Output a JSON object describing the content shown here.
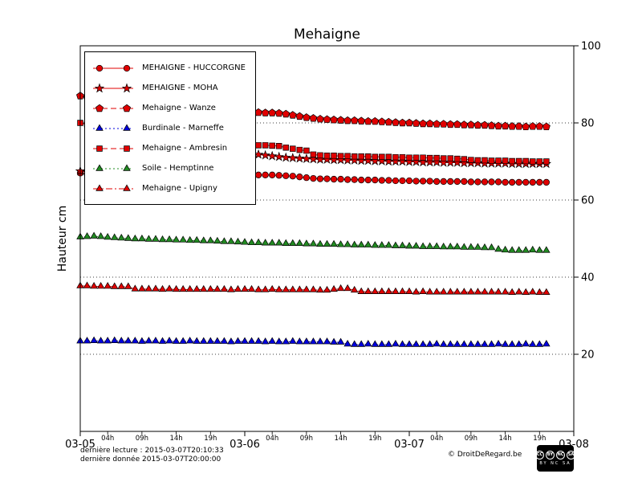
{
  "title": "Mehaigne",
  "ylabel": "Hauteur cm",
  "footer": {
    "last_read": "dernière lecture : 2015-03-07T20:10:33",
    "last_data": "dernière donnée  2015-03-07T20:00:00",
    "copyright": "© DroitDeRegard.be"
  },
  "license": {
    "cc": "cc",
    "by": "by",
    "nc": "nc",
    "sa": "sa",
    "caption": "BY NC SA"
  },
  "chart_data": {
    "type": "line",
    "title": "Mehaigne",
    "xlabel": "",
    "ylabel": "Hauteur cm",
    "ylim": [
      0,
      100
    ],
    "xlim": [
      0,
      72
    ],
    "x_unit": "hours since 2015-03-05 00:00",
    "grid": true,
    "grid_values": [
      20,
      40,
      60,
      80
    ],
    "yticks": [
      20,
      40,
      60,
      80,
      100
    ],
    "x_major": [
      {
        "t": 0,
        "label": "03-05"
      },
      {
        "t": 24,
        "label": "03-06"
      },
      {
        "t": 48,
        "label": "03-07"
      },
      {
        "t": 72,
        "label": "03-08"
      }
    ],
    "x_minor_hours": [
      4,
      9,
      14,
      19
    ],
    "x_minor_labels": [
      "04h",
      "09h",
      "14h",
      "19h"
    ],
    "legend_position": "upper left",
    "series": [
      {
        "name": "MEHAIGNE - HUCCORGNE",
        "color": "#e00000",
        "marker": "circle",
        "linestyle": "solid",
        "values": [
          67.0,
          66.8,
          null,
          null,
          null,
          null,
          null,
          null,
          null,
          null,
          null,
          null,
          null,
          null,
          null,
          null,
          null,
          null,
          null,
          null,
          null,
          null,
          null,
          null,
          66.3,
          66.4,
          66.5,
          66.5,
          66.5,
          66.4,
          66.3,
          66.2,
          66.0,
          65.8,
          65.6,
          65.5,
          65.5,
          65.4,
          65.4,
          65.3,
          65.3,
          65.2,
          65.2,
          65.2,
          65.1,
          65.1,
          65.0,
          65.0,
          65.0,
          64.9,
          64.9,
          64.9,
          64.8,
          64.8,
          64.8,
          64.8,
          64.8,
          64.7,
          64.7,
          64.7,
          64.7,
          64.7,
          64.6,
          64.6,
          64.6,
          64.6,
          64.6,
          64.6,
          64.6
        ]
      },
      {
        "name": "MEHAIGNE - MOHA",
        "color": "#e00000",
        "marker": "star",
        "linestyle": "solid",
        "values": [
          67.5,
          67.3,
          null,
          null,
          null,
          null,
          null,
          null,
          null,
          null,
          null,
          null,
          null,
          null,
          null,
          null,
          null,
          null,
          null,
          null,
          null,
          null,
          null,
          null,
          72.0,
          72.0,
          71.8,
          71.6,
          71.4,
          71.2,
          71.0,
          70.9,
          70.8,
          70.7,
          70.6,
          70.5,
          70.5,
          70.4,
          70.4,
          70.3,
          70.3,
          70.2,
          70.2,
          70.1,
          70.1,
          70.0,
          70.0,
          70.0,
          69.9,
          69.9,
          69.8,
          69.8,
          69.8,
          69.7,
          69.7,
          69.7,
          69.6,
          69.6,
          69.6,
          69.5,
          69.5,
          69.5,
          69.5,
          69.4,
          69.4,
          69.4,
          69.4,
          69.4,
          69.4
        ]
      },
      {
        "name": "Mehaigne - Wanze",
        "color": "#e00000",
        "marker": "pentagon",
        "linestyle": "dashed",
        "values": [
          87.0,
          86.6,
          null,
          null,
          null,
          null,
          null,
          null,
          null,
          null,
          null,
          null,
          null,
          null,
          null,
          null,
          null,
          null,
          null,
          null,
          null,
          null,
          null,
          null,
          82.7,
          82.7,
          82.7,
          82.6,
          82.6,
          82.5,
          82.3,
          82.0,
          81.7,
          81.4,
          81.2,
          81.0,
          80.9,
          80.8,
          80.7,
          80.6,
          80.6,
          80.5,
          80.4,
          80.4,
          80.3,
          80.2,
          80.1,
          80.0,
          80.0,
          79.9,
          79.8,
          79.8,
          79.7,
          79.7,
          79.6,
          79.6,
          79.5,
          79.5,
          79.4,
          79.4,
          79.3,
          79.2,
          79.2,
          79.1,
          79.1,
          79.0,
          79.1,
          79.1,
          79.0
        ]
      },
      {
        "name": "Burdinale - Marneffe",
        "color": "#0000dd",
        "marker": "triangle",
        "linestyle": "dotted",
        "values": [
          23.4,
          23.4,
          23.5,
          23.4,
          23.4,
          23.5,
          23.4,
          23.4,
          23.4,
          23.3,
          23.4,
          23.4,
          23.3,
          23.4,
          23.3,
          23.3,
          23.4,
          23.3,
          23.3,
          23.3,
          23.3,
          23.3,
          23.2,
          23.3,
          23.3,
          23.3,
          23.3,
          23.2,
          23.3,
          23.2,
          23.2,
          23.3,
          23.2,
          23.2,
          23.2,
          23.2,
          23.2,
          23.1,
          23.1,
          22.6,
          22.5,
          22.5,
          22.6,
          22.5,
          22.5,
          22.5,
          22.6,
          22.5,
          22.5,
          22.5,
          22.5,
          22.5,
          22.6,
          22.5,
          22.5,
          22.5,
          22.5,
          22.5,
          22.5,
          22.5,
          22.5,
          22.6,
          22.5,
          22.5,
          22.5,
          22.6,
          22.5,
          22.5,
          22.6
        ]
      },
      {
        "name": "Mehaigne - Ambresin",
        "color": "#e00000",
        "marker": "square",
        "linestyle": "dashed",
        "values": [
          80.0,
          79.6,
          null,
          null,
          null,
          null,
          null,
          null,
          null,
          null,
          null,
          null,
          null,
          null,
          null,
          null,
          null,
          null,
          null,
          null,
          null,
          null,
          null,
          null,
          74.3,
          74.3,
          74.2,
          74.2,
          74.1,
          74.0,
          73.6,
          73.3,
          73.0,
          72.8,
          71.8,
          71.6,
          71.5,
          71.5,
          71.4,
          71.4,
          71.3,
          71.3,
          71.3,
          71.2,
          71.2,
          71.2,
          71.1,
          71.1,
          71.0,
          71.0,
          71.0,
          70.9,
          70.9,
          70.8,
          70.8,
          70.7,
          70.6,
          70.4,
          70.3,
          70.3,
          70.2,
          70.2,
          70.2,
          70.1,
          70.1,
          70.1,
          70.0,
          70.0,
          70.0
        ]
      },
      {
        "name": "Soile - Hemptinne",
        "color": "#228b22",
        "marker": "triangle",
        "linestyle": "dotted",
        "values": [
          50.4,
          50.5,
          50.6,
          50.5,
          50.3,
          50.2,
          50.1,
          50.0,
          49.9,
          49.9,
          49.8,
          49.8,
          49.7,
          49.7,
          49.6,
          49.6,
          49.5,
          49.5,
          49.4,
          49.4,
          49.3,
          49.2,
          49.2,
          49.1,
          49.0,
          48.9,
          48.9,
          48.8,
          48.8,
          48.8,
          48.7,
          48.7,
          48.7,
          48.6,
          48.6,
          48.5,
          48.5,
          48.5,
          48.4,
          48.4,
          48.3,
          48.3,
          48.3,
          48.2,
          48.2,
          48.2,
          48.1,
          48.1,
          48.0,
          48.0,
          47.9,
          47.9,
          47.9,
          47.8,
          47.8,
          47.8,
          47.7,
          47.7,
          47.7,
          47.6,
          47.6,
          47.2,
          47.0,
          46.9,
          46.9,
          46.9,
          47.0,
          46.9,
          46.9
        ]
      },
      {
        "name": "Mehaigne - Upigny",
        "color": "#e00000",
        "marker": "triangle",
        "linestyle": "dashdot",
        "values": [
          37.7,
          37.7,
          37.6,
          37.6,
          37.6,
          37.5,
          37.5,
          37.5,
          36.9,
          36.9,
          36.9,
          36.9,
          36.8,
          36.9,
          36.8,
          36.8,
          36.8,
          36.8,
          36.8,
          36.8,
          36.8,
          36.8,
          36.7,
          36.8,
          36.8,
          36.8,
          36.7,
          36.7,
          36.8,
          36.7,
          36.7,
          36.7,
          36.7,
          36.7,
          36.7,
          36.6,
          36.6,
          36.8,
          37.0,
          37.0,
          36.6,
          36.2,
          36.2,
          36.2,
          36.2,
          36.2,
          36.2,
          36.2,
          36.2,
          36.1,
          36.2,
          36.1,
          36.1,
          36.1,
          36.1,
          36.1,
          36.1,
          36.1,
          36.1,
          36.1,
          36.1,
          36.1,
          36.1,
          36.0,
          36.1,
          36.0,
          36.1,
          36.0,
          36.0
        ]
      }
    ]
  }
}
